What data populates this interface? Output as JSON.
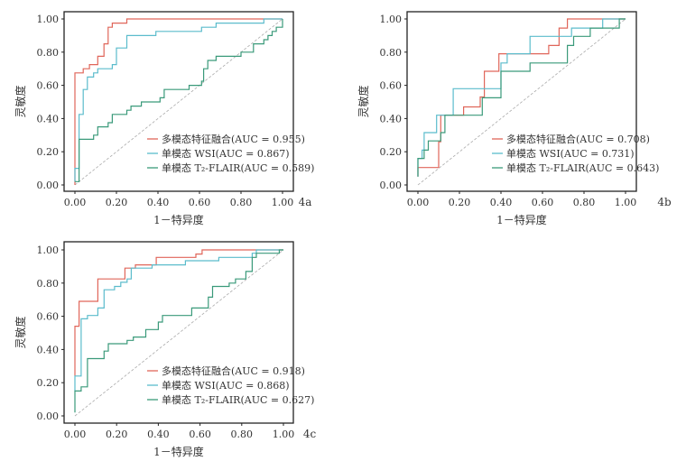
{
  "colors": {
    "fusion": "#e0665a",
    "wsi": "#5bbccc",
    "flair": "#3a9a7a",
    "diagonal": "#aaaaaa"
  },
  "chart_data": [
    {
      "type": "line",
      "panel_label": "4a",
      "xlabel": "1－特异度",
      "ylabel": "灵敏度",
      "xlim": [
        0,
        1
      ],
      "ylim": [
        0,
        1
      ],
      "xticks": [
        "0.00",
        "0.20",
        "0.40",
        "0.60",
        "0.80",
        "1.00"
      ],
      "yticks": [
        "0.00",
        "0.20",
        "0.40",
        "0.60",
        "0.80",
        "1.00"
      ],
      "legend_position": "bottom-right",
      "series": [
        {
          "name": "多模态特征融合(AUC = 0.955)",
          "color_key": "fusion",
          "points": [
            [
              0,
              0
            ],
            [
              0,
              0.675
            ],
            [
              0.04,
              0.675
            ],
            [
              0.04,
              0.7
            ],
            [
              0.07,
              0.7
            ],
            [
              0.07,
              0.725
            ],
            [
              0.11,
              0.725
            ],
            [
              0.11,
              0.775
            ],
            [
              0.14,
              0.775
            ],
            [
              0.14,
              0.85
            ],
            [
              0.16,
              0.85
            ],
            [
              0.16,
              0.95
            ],
            [
              0.18,
              0.95
            ],
            [
              0.18,
              0.975
            ],
            [
              0.25,
              0.975
            ],
            [
              0.25,
              1
            ],
            [
              1,
              1
            ]
          ]
        },
        {
          "name": "单模态 WSI(AUC = 0.867)",
          "color_key": "wsi",
          "points": [
            [
              0,
              0.02
            ],
            [
              0,
              0.1
            ],
            [
              0.02,
              0.1
            ],
            [
              0.02,
              0.425
            ],
            [
              0.04,
              0.425
            ],
            [
              0.04,
              0.575
            ],
            [
              0.06,
              0.575
            ],
            [
              0.06,
              0.65
            ],
            [
              0.09,
              0.65
            ],
            [
              0.09,
              0.675
            ],
            [
              0.11,
              0.675
            ],
            [
              0.11,
              0.7
            ],
            [
              0.18,
              0.7
            ],
            [
              0.18,
              0.725
            ],
            [
              0.2,
              0.725
            ],
            [
              0.2,
              0.825
            ],
            [
              0.25,
              0.825
            ],
            [
              0.25,
              0.9
            ],
            [
              0.39,
              0.9
            ],
            [
              0.39,
              0.925
            ],
            [
              0.61,
              0.925
            ],
            [
              0.61,
              0.95
            ],
            [
              0.68,
              0.95
            ],
            [
              0.68,
              0.975
            ],
            [
              0.91,
              0.975
            ],
            [
              0.91,
              1
            ],
            [
              1,
              1
            ]
          ]
        },
        {
          "name": "单模态 T₂-FLAIR(AUC = 0.589)",
          "color_key": "flair",
          "points": [
            [
              0,
              0.02
            ],
            [
              0.02,
              0.02
            ],
            [
              0.02,
              0.275
            ],
            [
              0.09,
              0.275
            ],
            [
              0.09,
              0.3
            ],
            [
              0.11,
              0.3
            ],
            [
              0.11,
              0.35
            ],
            [
              0.16,
              0.35
            ],
            [
              0.16,
              0.375
            ],
            [
              0.18,
              0.375
            ],
            [
              0.18,
              0.425
            ],
            [
              0.25,
              0.425
            ],
            [
              0.25,
              0.45
            ],
            [
              0.27,
              0.45
            ],
            [
              0.27,
              0.475
            ],
            [
              0.32,
              0.475
            ],
            [
              0.32,
              0.5
            ],
            [
              0.41,
              0.5
            ],
            [
              0.41,
              0.525
            ],
            [
              0.43,
              0.525
            ],
            [
              0.43,
              0.575
            ],
            [
              0.55,
              0.575
            ],
            [
              0.55,
              0.6
            ],
            [
              0.61,
              0.6
            ],
            [
              0.61,
              0.625
            ],
            [
              0.62,
              0.625
            ],
            [
              0.62,
              0.7
            ],
            [
              0.64,
              0.7
            ],
            [
              0.64,
              0.75
            ],
            [
              0.68,
              0.75
            ],
            [
              0.68,
              0.775
            ],
            [
              0.8,
              0.775
            ],
            [
              0.8,
              0.8
            ],
            [
              0.86,
              0.8
            ],
            [
              0.86,
              0.85
            ],
            [
              0.91,
              0.85
            ],
            [
              0.91,
              0.875
            ],
            [
              0.93,
              0.875
            ],
            [
              0.93,
              0.9
            ],
            [
              0.95,
              0.9
            ],
            [
              0.95,
              0.925
            ],
            [
              0.97,
              0.925
            ],
            [
              0.97,
              0.95
            ],
            [
              1,
              0.95
            ],
            [
              1,
              1
            ]
          ]
        }
      ]
    },
    {
      "type": "line",
      "panel_label": "4b",
      "xlabel": "1－特异度",
      "ylabel": "灵敏度",
      "xlim": [
        0,
        1
      ],
      "ylim": [
        0,
        1
      ],
      "xticks": [
        "0.00",
        "0.20",
        "0.40",
        "0.60",
        "0.80",
        "1.00"
      ],
      "yticks": [
        "0.00",
        "0.20",
        "0.40",
        "0.60",
        "0.80",
        "1.00"
      ],
      "legend_position": "bottom-right",
      "series": [
        {
          "name": "多模态特征融合(AUC = 0.708)",
          "color_key": "fusion",
          "points": [
            [
              0,
              0.05
            ],
            [
              0,
              0.105
            ],
            [
              0.1,
              0.105
            ],
            [
              0.1,
              0.26
            ],
            [
              0.11,
              0.26
            ],
            [
              0.11,
              0.42
            ],
            [
              0.22,
              0.42
            ],
            [
              0.22,
              0.47
            ],
            [
              0.3,
              0.47
            ],
            [
              0.3,
              0.53
            ],
            [
              0.32,
              0.53
            ],
            [
              0.32,
              0.685
            ],
            [
              0.39,
              0.685
            ],
            [
              0.39,
              0.79
            ],
            [
              0.63,
              0.79
            ],
            [
              0.63,
              0.84
            ],
            [
              0.68,
              0.84
            ],
            [
              0.68,
              0.945
            ],
            [
              0.72,
              0.945
            ],
            [
              0.72,
              1
            ],
            [
              1,
              1
            ]
          ]
        },
        {
          "name": "单模态 WSI(AUC = 0.731)",
          "color_key": "wsi",
          "points": [
            [
              0,
              0.05
            ],
            [
              0,
              0.16
            ],
            [
              0.02,
              0.16
            ],
            [
              0.02,
              0.21
            ],
            [
              0.03,
              0.21
            ],
            [
              0.03,
              0.315
            ],
            [
              0.09,
              0.315
            ],
            [
              0.09,
              0.42
            ],
            [
              0.17,
              0.42
            ],
            [
              0.17,
              0.58
            ],
            [
              0.4,
              0.58
            ],
            [
              0.4,
              0.735
            ],
            [
              0.43,
              0.735
            ],
            [
              0.43,
              0.79
            ],
            [
              0.54,
              0.79
            ],
            [
              0.54,
              0.895
            ],
            [
              0.74,
              0.895
            ],
            [
              0.74,
              0.945
            ],
            [
              0.89,
              0.945
            ],
            [
              0.89,
              1
            ],
            [
              1,
              1
            ]
          ]
        },
        {
          "name": "单模态 T₂-FLAIR(AUC = 0.643)",
          "color_key": "flair",
          "points": [
            [
              0,
              0.05
            ],
            [
              0,
              0.16
            ],
            [
              0.03,
              0.16
            ],
            [
              0.03,
              0.21
            ],
            [
              0.05,
              0.21
            ],
            [
              0.05,
              0.265
            ],
            [
              0.11,
              0.265
            ],
            [
              0.11,
              0.315
            ],
            [
              0.13,
              0.315
            ],
            [
              0.13,
              0.42
            ],
            [
              0.31,
              0.42
            ],
            [
              0.31,
              0.525
            ],
            [
              0.4,
              0.525
            ],
            [
              0.4,
              0.685
            ],
            [
              0.54,
              0.685
            ],
            [
              0.54,
              0.735
            ],
            [
              0.72,
              0.735
            ],
            [
              0.72,
              0.84
            ],
            [
              0.75,
              0.84
            ],
            [
              0.75,
              0.895
            ],
            [
              0.83,
              0.895
            ],
            [
              0.83,
              0.945
            ],
            [
              0.97,
              0.945
            ],
            [
              0.97,
              1
            ],
            [
              1,
              1
            ]
          ]
        }
      ]
    },
    {
      "type": "line",
      "panel_label": "4c",
      "xlabel": "1－特异度",
      "ylabel": "灵敏度",
      "xlim": [
        0,
        1
      ],
      "ylim": [
        0,
        1
      ],
      "xticks": [
        "0.00",
        "0.20",
        "0.40",
        "0.60",
        "0.80",
        "1.00"
      ],
      "yticks": [
        "0.00",
        "0.20",
        "0.40",
        "0.60",
        "0.80",
        "1.00"
      ],
      "legend_position": "bottom-right",
      "series": [
        {
          "name": "多模态特征融合(AUC = 0.918)",
          "color_key": "fusion",
          "points": [
            [
              0,
              0.24
            ],
            [
              0,
              0.54
            ],
            [
              0.02,
              0.54
            ],
            [
              0.02,
              0.69
            ],
            [
              0.11,
              0.69
            ],
            [
              0.11,
              0.825
            ],
            [
              0.24,
              0.825
            ],
            [
              0.24,
              0.89
            ],
            [
              0.29,
              0.89
            ],
            [
              0.29,
              0.91
            ],
            [
              0.39,
              0.91
            ],
            [
              0.39,
              0.955
            ],
            [
              0.58,
              0.955
            ],
            [
              0.58,
              0.975
            ],
            [
              0.61,
              0.975
            ],
            [
              0.61,
              1
            ],
            [
              1,
              1
            ]
          ]
        },
        {
          "name": "单模态 WSI(AUC = 0.868)",
          "color_key": "wsi",
          "points": [
            [
              0,
              0.15
            ],
            [
              0,
              0.24
            ],
            [
              0.03,
              0.24
            ],
            [
              0.03,
              0.585
            ],
            [
              0.06,
              0.585
            ],
            [
              0.06,
              0.605
            ],
            [
              0.11,
              0.605
            ],
            [
              0.11,
              0.65
            ],
            [
              0.14,
              0.65
            ],
            [
              0.14,
              0.76
            ],
            [
              0.19,
              0.76
            ],
            [
              0.19,
              0.78
            ],
            [
              0.22,
              0.78
            ],
            [
              0.22,
              0.805
            ],
            [
              0.25,
              0.805
            ],
            [
              0.25,
              0.825
            ],
            [
              0.27,
              0.825
            ],
            [
              0.27,
              0.89
            ],
            [
              0.37,
              0.89
            ],
            [
              0.37,
              0.91
            ],
            [
              0.53,
              0.91
            ],
            [
              0.53,
              0.935
            ],
            [
              0.69,
              0.935
            ],
            [
              0.69,
              0.955
            ],
            [
              0.85,
              0.955
            ],
            [
              0.85,
              0.98
            ],
            [
              0.87,
              0.98
            ],
            [
              0.87,
              1
            ],
            [
              1,
              1
            ]
          ]
        },
        {
          "name": "单模态 T₂-FLAIR(AUC = 0.627)",
          "color_key": "flair",
          "points": [
            [
              0,
              0.02
            ],
            [
              0,
              0.15
            ],
            [
              0.03,
              0.15
            ],
            [
              0.03,
              0.175
            ],
            [
              0.06,
              0.175
            ],
            [
              0.06,
              0.345
            ],
            [
              0.14,
              0.345
            ],
            [
              0.14,
              0.39
            ],
            [
              0.16,
              0.39
            ],
            [
              0.16,
              0.435
            ],
            [
              0.25,
              0.435
            ],
            [
              0.25,
              0.455
            ],
            [
              0.28,
              0.455
            ],
            [
              0.28,
              0.475
            ],
            [
              0.34,
              0.475
            ],
            [
              0.34,
              0.52
            ],
            [
              0.4,
              0.52
            ],
            [
              0.4,
              0.565
            ],
            [
              0.42,
              0.565
            ],
            [
              0.42,
              0.605
            ],
            [
              0.56,
              0.605
            ],
            [
              0.56,
              0.65
            ],
            [
              0.64,
              0.65
            ],
            [
              0.64,
              0.715
            ],
            [
              0.66,
              0.715
            ],
            [
              0.66,
              0.78
            ],
            [
              0.74,
              0.78
            ],
            [
              0.74,
              0.8
            ],
            [
              0.77,
              0.8
            ],
            [
              0.77,
              0.825
            ],
            [
              0.82,
              0.825
            ],
            [
              0.82,
              0.87
            ],
            [
              0.85,
              0.87
            ],
            [
              0.85,
              0.955
            ],
            [
              0.87,
              0.955
            ],
            [
              0.87,
              0.98
            ],
            [
              0.98,
              0.98
            ],
            [
              0.98,
              1
            ],
            [
              1,
              1
            ]
          ]
        }
      ]
    }
  ]
}
